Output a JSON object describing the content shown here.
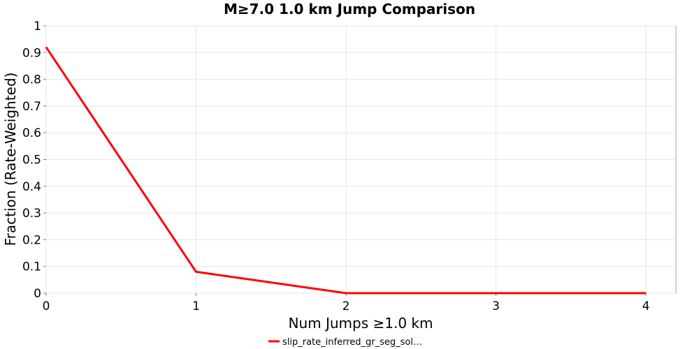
{
  "chart_data": {
    "type": "line",
    "title": "M≥7.0 1.0 km Jump Comparison",
    "xlabel": "Num Jumps ≥1.0 km",
    "ylabel": "Fraction (Rate-Weighted)",
    "xlim": [
      0,
      4.2
    ],
    "ylim": [
      0,
      1
    ],
    "xticks": [
      0,
      1,
      2,
      3,
      4
    ],
    "yticks": [
      0,
      0.1,
      0.2,
      0.3,
      0.4,
      0.5,
      0.6,
      0.7,
      0.8,
      0.9,
      1
    ],
    "grid": true,
    "legend_position": "bottom-center",
    "series": [
      {
        "name": "slip_rate_inferred_gr_seg_sol…",
        "color": "#ff0000",
        "x": [
          0,
          1,
          2,
          3,
          4
        ],
        "y": [
          0.92,
          0.08,
          0.0,
          0.0,
          0.0
        ]
      }
    ]
  }
}
